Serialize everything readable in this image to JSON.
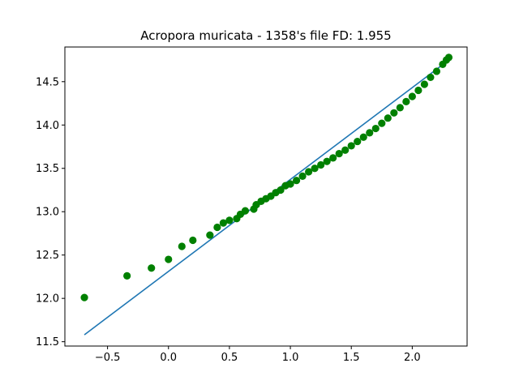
{
  "chart_data": {
    "type": "scatter",
    "title": "Acropora muricata - 1358's file FD: 1.955",
    "xlabel": "",
    "ylabel": "",
    "xlim": [
      -0.85,
      2.45
    ],
    "ylim": [
      11.45,
      14.9
    ],
    "x_ticks": [
      -0.5,
      0.0,
      0.5,
      1.0,
      1.5,
      2.0
    ],
    "x_tick_labels": [
      "−0.5",
      "0.0",
      "0.5",
      "1.0",
      "1.5",
      "2.0"
    ],
    "y_ticks": [
      11.5,
      12.0,
      12.5,
      13.0,
      13.5,
      14.0,
      14.5
    ],
    "y_tick_labels": [
      "11.5",
      "12.0",
      "12.5",
      "13.0",
      "13.5",
      "14.0",
      "14.5"
    ],
    "grid": false,
    "series": [
      {
        "type": "scatter",
        "color": "#008000",
        "points": [
          [
            -0.69,
            12.01
          ],
          [
            -0.34,
            12.26
          ],
          [
            -0.14,
            12.35
          ],
          [
            0.0,
            12.45
          ],
          [
            0.11,
            12.6
          ],
          [
            0.2,
            12.67
          ],
          [
            0.34,
            12.73
          ],
          [
            0.4,
            12.82
          ],
          [
            0.45,
            12.87
          ],
          [
            0.5,
            12.9
          ],
          [
            0.56,
            12.92
          ],
          [
            0.59,
            12.97
          ],
          [
            0.63,
            13.01
          ],
          [
            0.7,
            13.03
          ],
          [
            0.72,
            13.08
          ],
          [
            0.76,
            13.12
          ],
          [
            0.8,
            13.15
          ],
          [
            0.84,
            13.18
          ],
          [
            0.88,
            13.22
          ],
          [
            0.92,
            13.25
          ],
          [
            0.96,
            13.3
          ],
          [
            1.0,
            13.32
          ],
          [
            1.05,
            13.36
          ],
          [
            1.1,
            13.41
          ],
          [
            1.15,
            13.46
          ],
          [
            1.2,
            13.5
          ],
          [
            1.25,
            13.54
          ],
          [
            1.3,
            13.58
          ],
          [
            1.35,
            13.62
          ],
          [
            1.4,
            13.67
          ],
          [
            1.45,
            13.71
          ],
          [
            1.5,
            13.76
          ],
          [
            1.55,
            13.81
          ],
          [
            1.6,
            13.86
          ],
          [
            1.65,
            13.91
          ],
          [
            1.7,
            13.96
          ],
          [
            1.75,
            14.02
          ],
          [
            1.8,
            14.08
          ],
          [
            1.85,
            14.14
          ],
          [
            1.9,
            14.2
          ],
          [
            1.95,
            14.27
          ],
          [
            2.0,
            14.33
          ],
          [
            2.05,
            14.4
          ],
          [
            2.1,
            14.47
          ],
          [
            2.15,
            14.55
          ],
          [
            2.2,
            14.62
          ],
          [
            2.25,
            14.7
          ],
          [
            2.28,
            14.75
          ],
          [
            2.3,
            14.78
          ]
        ]
      },
      {
        "type": "line",
        "color": "#1f77b4",
        "points": [
          [
            -0.69,
            11.58
          ],
          [
            2.3,
            14.75
          ]
        ]
      }
    ]
  }
}
